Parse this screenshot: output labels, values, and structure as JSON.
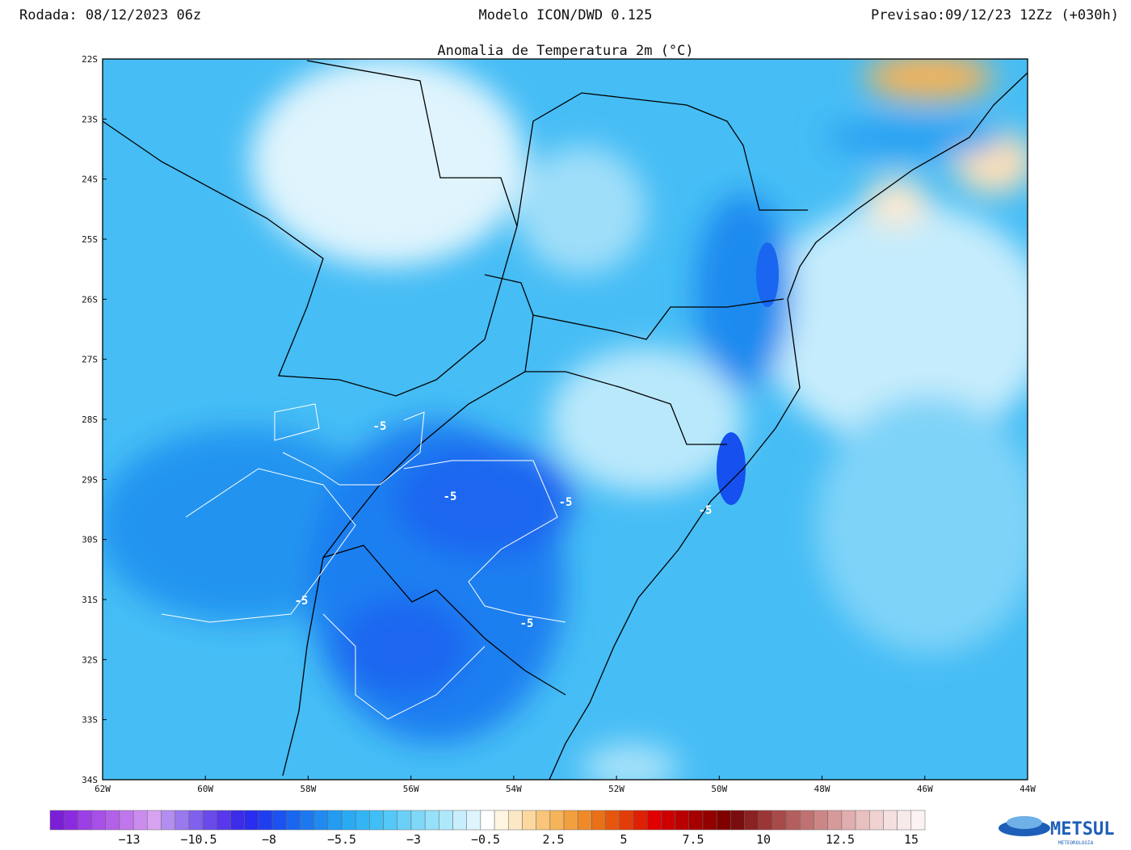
{
  "header": {
    "run": "Rodada: 08/12/2023 06z",
    "model": "Modelo ICON/DWD 0.125",
    "forecast": "Previsao:09/12/23 12Zz (+030h)",
    "title": "Anomalia de Temperatura 2m (°C)"
  },
  "map": {
    "lon_labels": [
      "62W",
      "60W",
      "58W",
      "56W",
      "54W",
      "52W",
      "50W",
      "48W",
      "46W",
      "44W"
    ],
    "lat_labels": [
      "22S",
      "23S",
      "24S",
      "25S",
      "26S",
      "27S",
      "28S",
      "29S",
      "30S",
      "31S",
      "32S",
      "33S",
      "34S"
    ],
    "contour_labels": [
      "-5",
      "-5",
      "-5",
      "-5",
      "-5",
      "-5"
    ]
  },
  "colorbar": {
    "labels": [
      "−13",
      "−10.5",
      "−8",
      "−5.5",
      "−3",
      "−0.5",
      "2.5",
      "5",
      "7.5",
      "10",
      "12.5",
      "15"
    ]
  },
  "logo": {
    "name": "METSUL",
    "tagline": "METEOROLOGIA"
  }
}
